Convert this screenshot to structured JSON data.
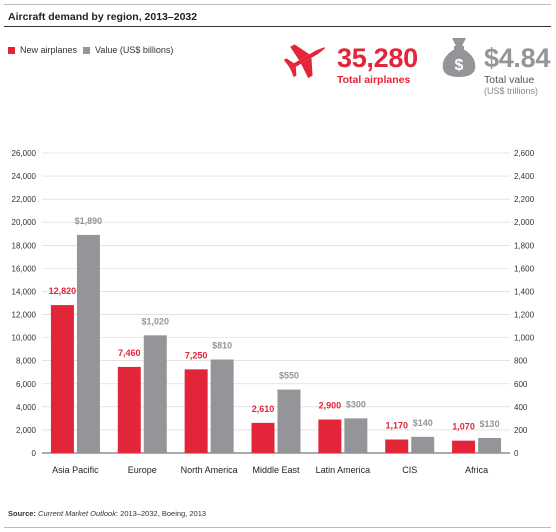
{
  "title": "Aircraft demand by region, 2013–2032",
  "legend": {
    "items": [
      {
        "label": "New airplanes",
        "color": "#e3253a"
      },
      {
        "label": "Value (US$ billions)",
        "color": "#939598"
      }
    ]
  },
  "kpis": {
    "airplanes": {
      "value": "35,280",
      "label": "Total airplanes",
      "icon": "airplane-icon",
      "color": "#e3253a"
    },
    "value": {
      "value": "$4.84",
      "label": "Total value",
      "sub": "(US$ trillions)",
      "icon": "money-bag-icon",
      "color": "#939598"
    }
  },
  "source": {
    "prefix": "Source:",
    "publication": "Current Market Outlook",
    "suffix": ": 2013–2032, Boeing, 2013"
  },
  "chart_data": {
    "type": "bar",
    "categories": [
      "Asia Pacific",
      "Europe",
      "North America",
      "Middle East",
      "Latin America",
      "CIS",
      "Africa"
    ],
    "series": [
      {
        "name": "New airplanes",
        "axis": "left",
        "color": "#e3253a",
        "values": [
          12820,
          7460,
          7250,
          2610,
          2900,
          1170,
          1070
        ],
        "labels": [
          "12,820",
          "7,460",
          "7,250",
          "2,610",
          "2,900",
          "1,170",
          "1,070"
        ]
      },
      {
        "name": "Value (US$ billions)",
        "axis": "right",
        "color": "#939598",
        "values": [
          1890,
          1020,
          810,
          550,
          300,
          140,
          130
        ],
        "labels": [
          "$1,890",
          "$1,020",
          "$810",
          "$550",
          "$300",
          "$140",
          "$130"
        ]
      }
    ],
    "y_left": {
      "min": 0,
      "max": 26000,
      "step": 2000,
      "ticks": [
        "0",
        "2,000",
        "4,000",
        "6,000",
        "8,000",
        "10,000",
        "12,000",
        "14,000",
        "16,000",
        "18,000",
        "20,000",
        "22,000",
        "24,000",
        "26,000"
      ]
    },
    "y_right": {
      "min": 0,
      "max": 2600,
      "step": 200,
      "ticks": [
        "0",
        "200",
        "400",
        "600",
        "800",
        "1,000",
        "1,200",
        "1,400",
        "1,600",
        "1,800",
        "2,000",
        "2,200",
        "2,400",
        "2,600"
      ]
    },
    "grid": true,
    "legend_position": "top-left"
  }
}
